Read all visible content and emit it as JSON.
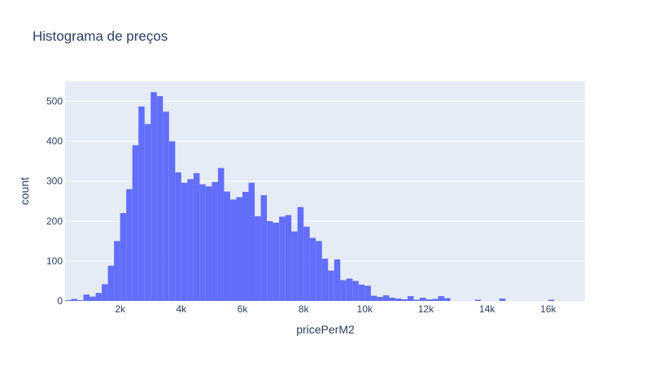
{
  "chart_data": {
    "type": "bar",
    "title": "Histograma de preços",
    "xlabel": "pricePerM2",
    "ylabel": "count",
    "xlim": [
      200,
      17200
    ],
    "ylim": [
      0,
      550
    ],
    "grid": true,
    "colors": {
      "bar": "#636efa",
      "plot_bg": "#e5ecf6",
      "grid": "#ffffff",
      "text": "#2a3f5f"
    },
    "x_ticks": [
      2000,
      4000,
      6000,
      8000,
      10000,
      12000,
      14000,
      16000
    ],
    "x_tick_labels": [
      "2k",
      "4k",
      "6k",
      "8k",
      "10k",
      "12k",
      "14k",
      "16k"
    ],
    "y_ticks": [
      0,
      100,
      200,
      300,
      400,
      500
    ],
    "y_tick_labels": [
      "0",
      "100",
      "200",
      "300",
      "400",
      "500"
    ],
    "bin_start": 200,
    "bin_width": 200,
    "values": [
      2,
      5,
      2,
      16,
      11,
      20,
      42,
      88,
      150,
      220,
      280,
      390,
      487,
      443,
      523,
      513,
      474,
      400,
      322,
      296,
      305,
      320,
      292,
      287,
      298,
      333,
      274,
      254,
      260,
      273,
      296,
      212,
      265,
      200,
      196,
      211,
      215,
      174,
      235,
      186,
      158,
      150,
      106,
      76,
      104,
      52,
      56,
      50,
      41,
      38,
      13,
      10,
      14,
      8,
      6,
      4,
      12,
      3,
      8,
      4,
      5,
      12,
      7,
      0,
      0,
      0,
      0,
      3,
      0,
      0,
      0,
      6,
      0,
      0,
      0,
      0,
      0,
      0,
      0,
      3,
      0,
      0,
      0,
      0,
      0
    ]
  }
}
